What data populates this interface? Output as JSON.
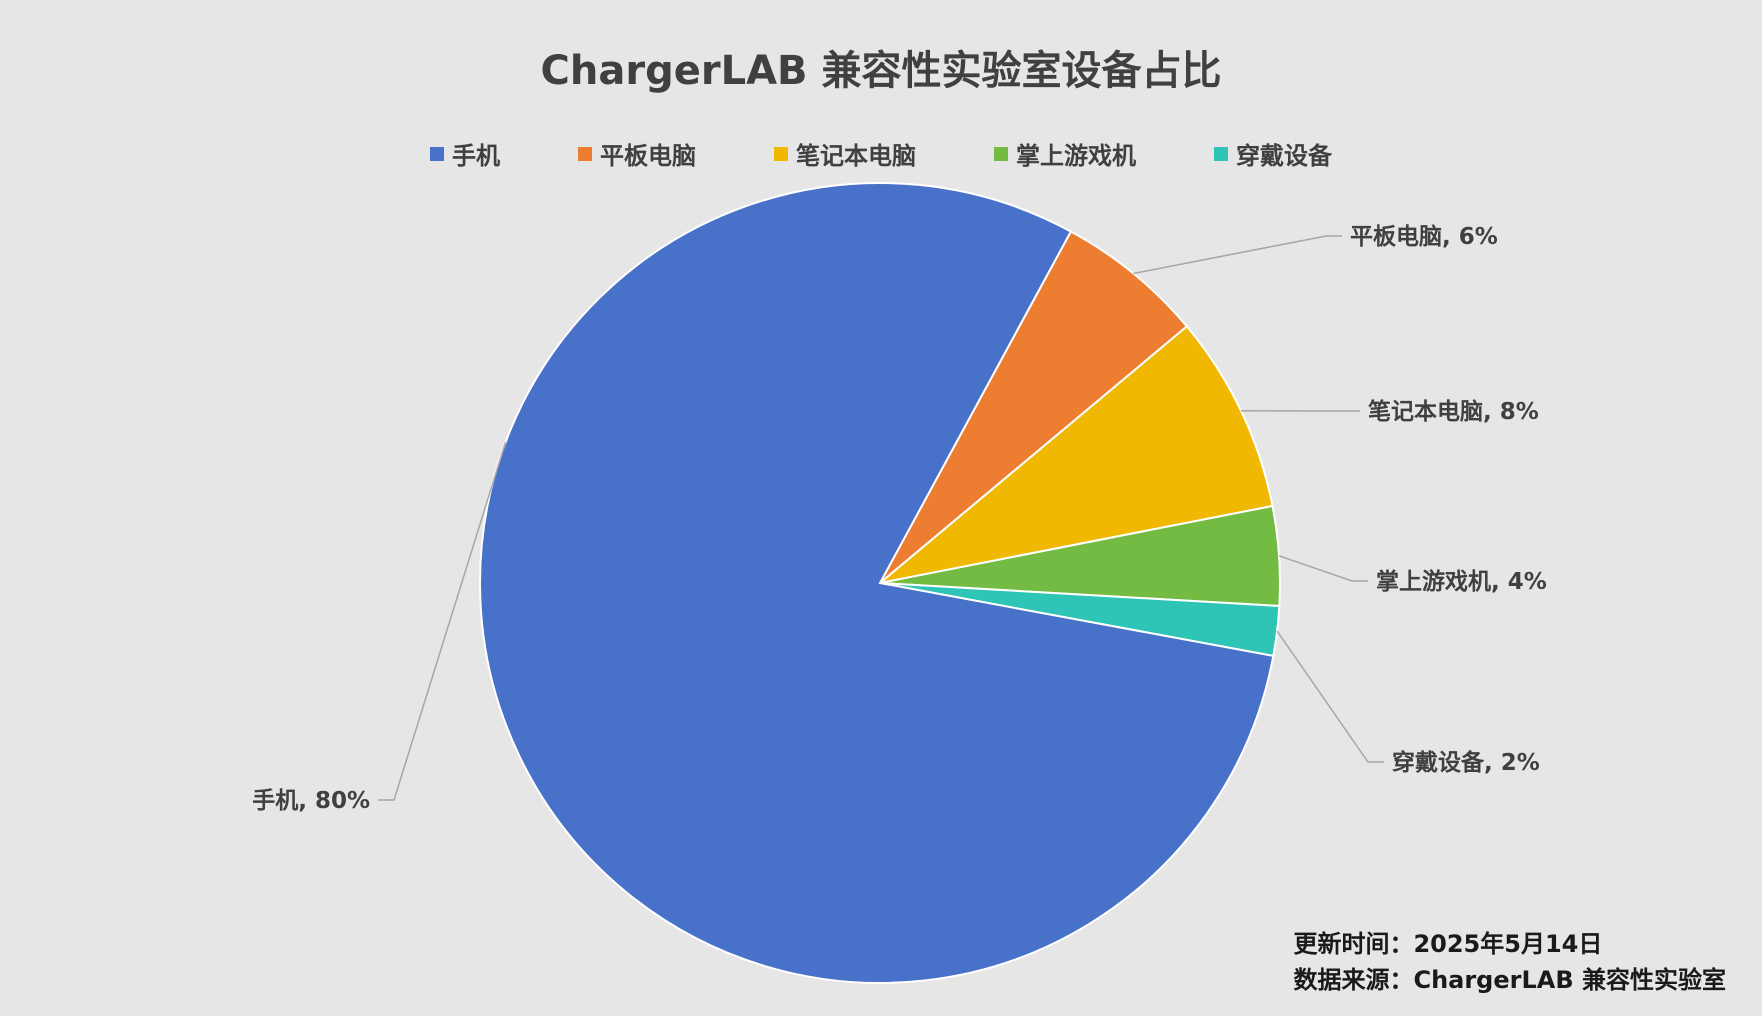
{
  "chart_data": {
    "type": "pie",
    "title": "ChargerLAB 兼容性实验室设备占比",
    "categories": [
      "手机",
      "平板电脑",
      "笔记本电脑",
      "掌上游戏机",
      "穿戴设备"
    ],
    "values": [
      80,
      6,
      8,
      4,
      2
    ],
    "value_format": "percent",
    "colors": [
      "#4872c9",
      "#ed7d31",
      "#f0b800",
      "#74bb43",
      "#2ec4b6"
    ],
    "legend": "top",
    "labels": [
      "手机, 80%",
      "平板电脑, 6%",
      "笔记本电脑, 8%",
      "掌上游戏机, 4%",
      "穿戴设备, 2%"
    ]
  },
  "footnote": {
    "update_time": "更新时间：2025年5月14日",
    "source": "数据来源：ChargerLAB 兼容性实验室"
  }
}
